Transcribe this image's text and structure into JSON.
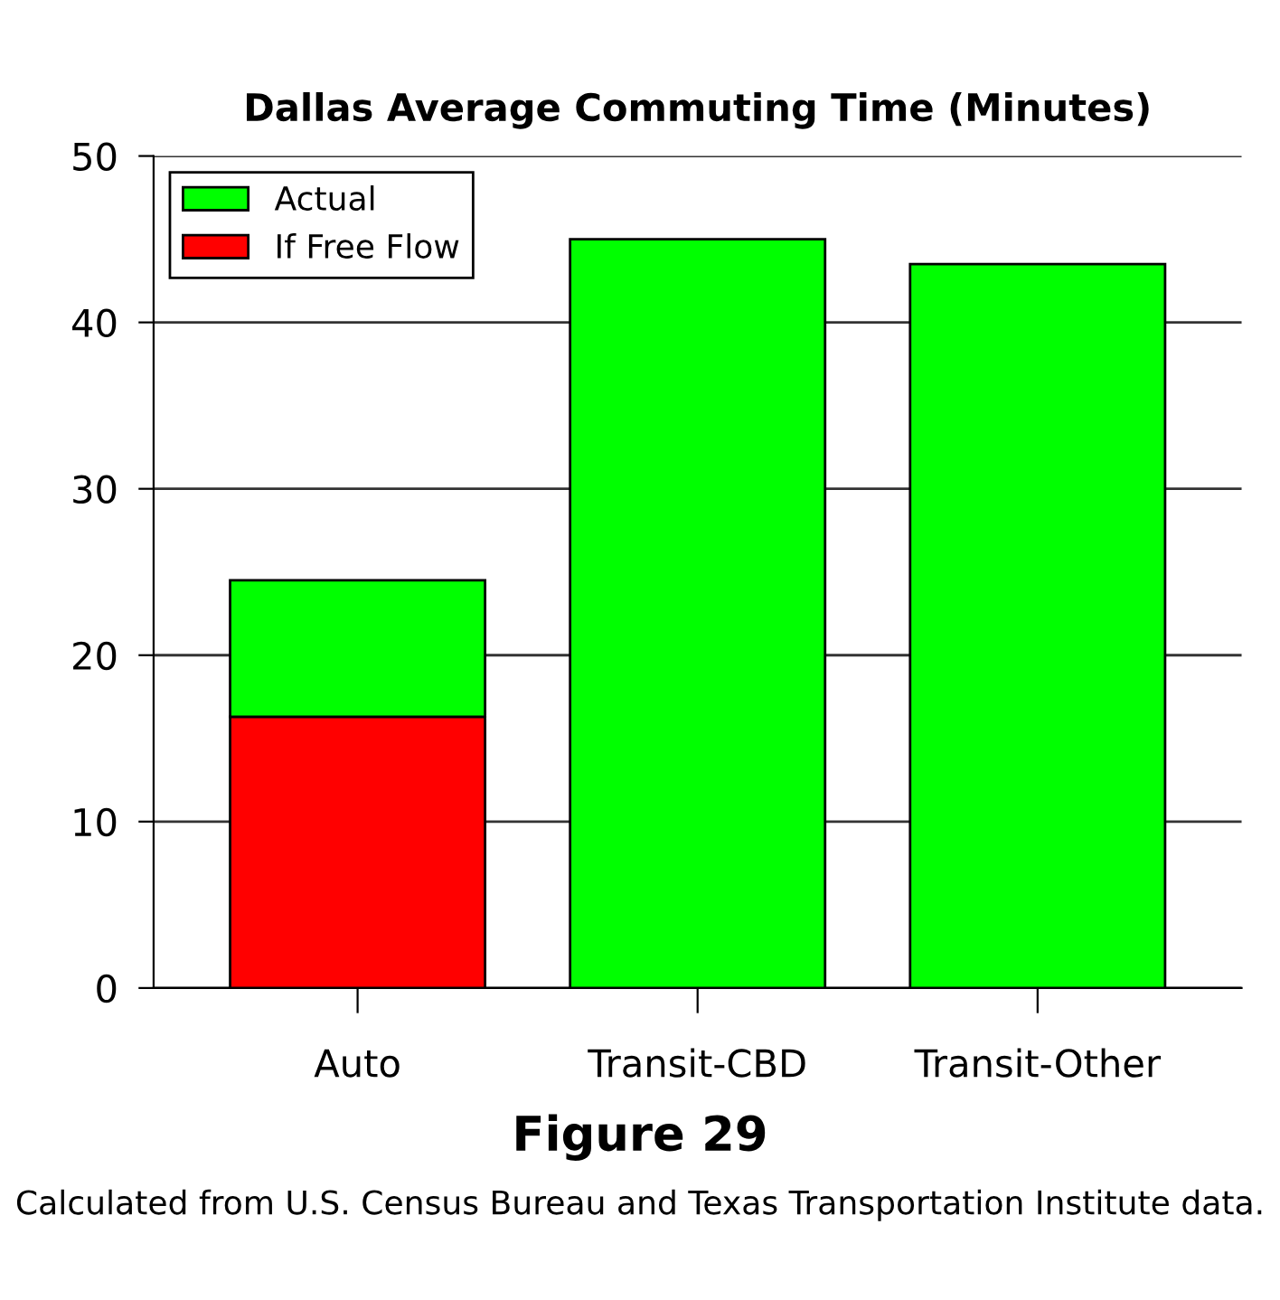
{
  "chart_data": {
    "type": "bar",
    "title": "Dallas Average Commuting Time (Minutes)",
    "categories": [
      "Auto",
      "Transit-CBD",
      "Transit-Other"
    ],
    "stacked": true,
    "series": [
      {
        "name": "If Free Flow",
        "color": "#ff0000",
        "values": [
          16.3,
          null,
          null
        ]
      },
      {
        "name": "Actual",
        "color": "#00ff00",
        "values": [
          8.2,
          45.0,
          43.5
        ]
      }
    ],
    "ylim": [
      0,
      50
    ],
    "yticks": [
      0,
      10,
      20,
      30,
      40,
      50
    ],
    "grid": "y",
    "legend": "top left",
    "annotations": [
      "Figure 29",
      "Calculated from U.S. Census Bureau and Texas Transportation Institute data."
    ]
  }
}
